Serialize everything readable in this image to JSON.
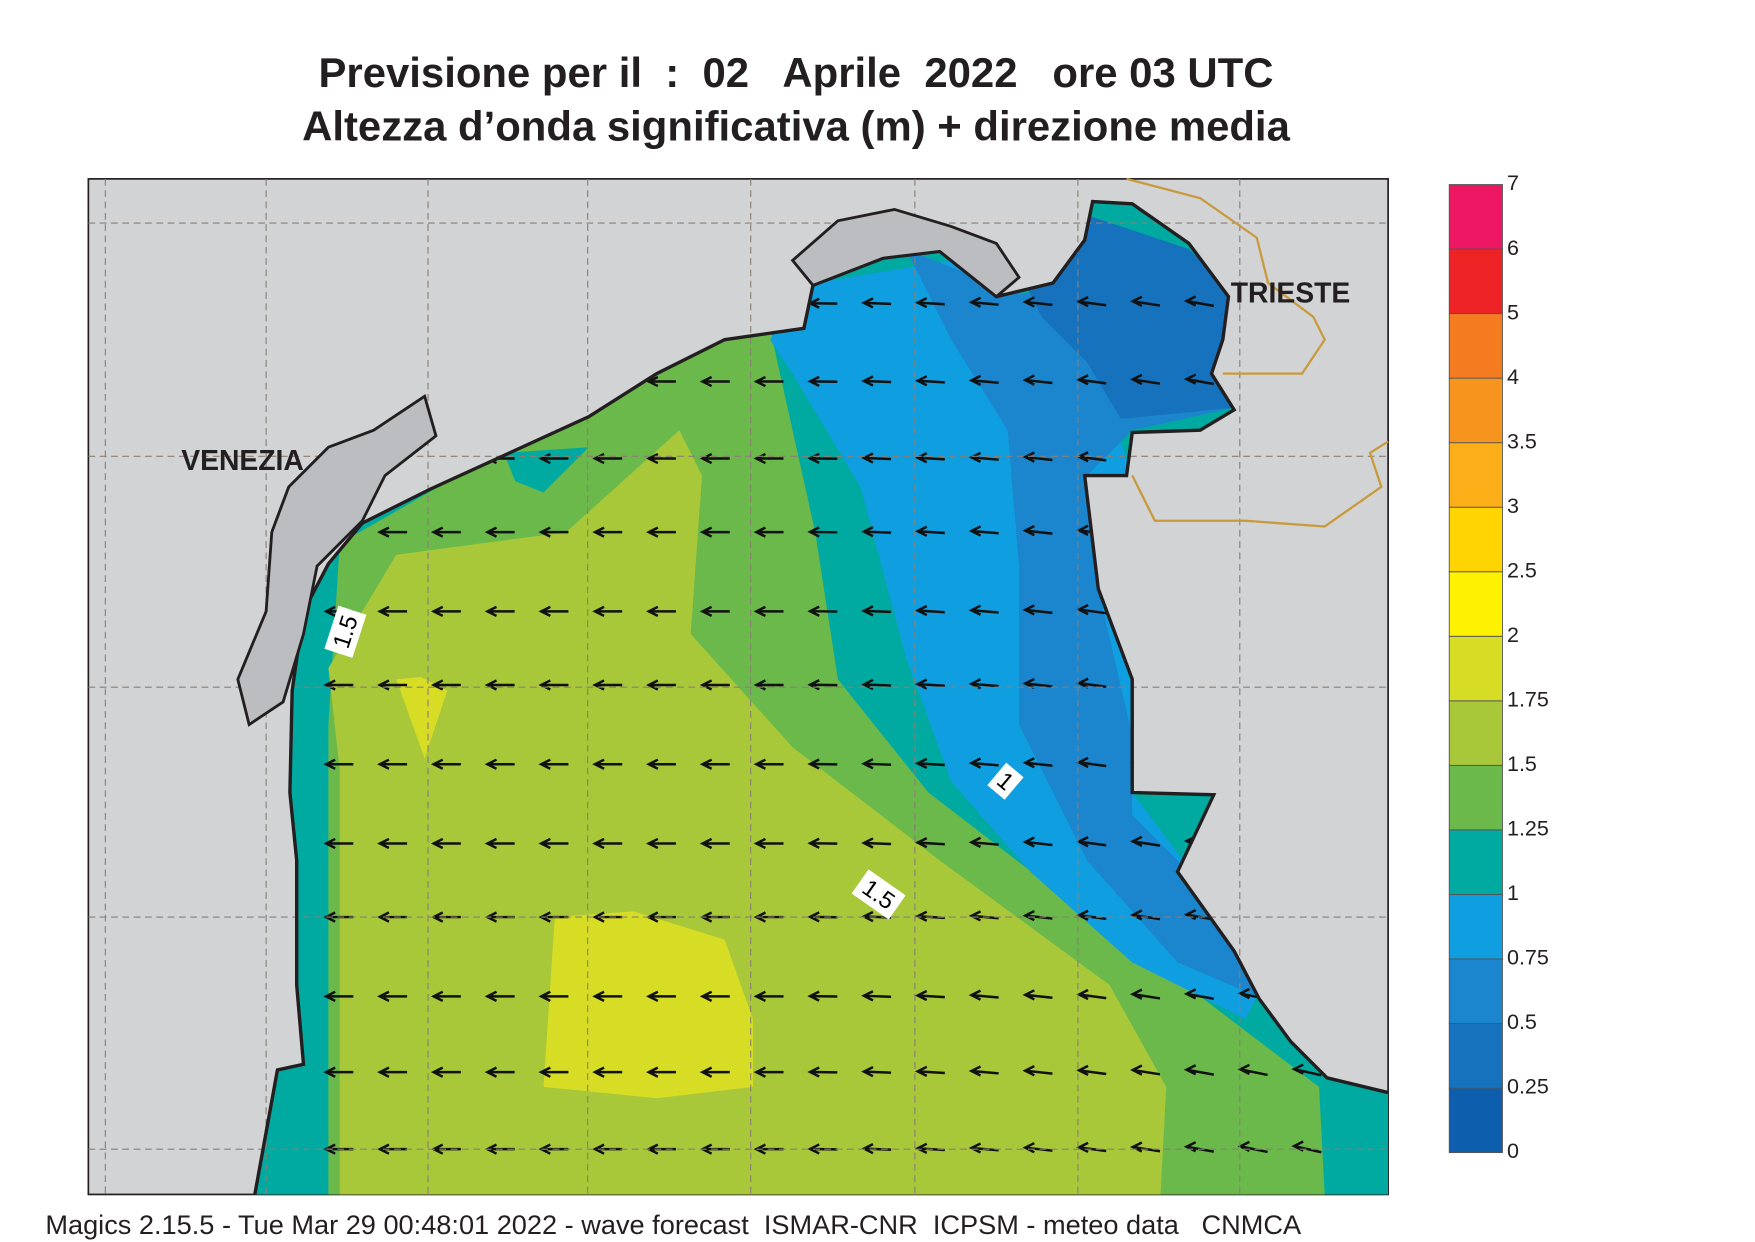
{
  "header": {
    "title": "Previsione per il  :  02   Aprile  2022   ore 03 UTC",
    "subtitle": "Altezza d’onda significativa (m) + direzione media"
  },
  "labels": {
    "cities": [
      "VENEZIA",
      "TRIESTE"
    ],
    "contours": [
      "1.5",
      "1",
      "1.5"
    ]
  },
  "colorbar": {
    "levels": [
      0,
      0.25,
      0.5,
      0.75,
      1,
      1.25,
      1.5,
      1.75,
      2,
      2.5,
      3,
      3.5,
      4,
      5,
      6,
      7
    ],
    "colors": [
      "#0d5fad",
      "#1672bd",
      "#1b86cd",
      "#0f9fe0",
      "#00aaa0",
      "#6ab94a",
      "#a8c83a",
      "#d7dd25",
      "#fff200",
      "#ffd400",
      "#fbae17",
      "#f7941d",
      "#f57b20",
      "#ed2224",
      "#ec1663"
    ]
  },
  "footer": "Magics 2.15.5 - Tue Mar 29 00:48:01 2022 - wave forecast  ISMAR-CNR  ICPSM - meteo data   CNMCA"
}
